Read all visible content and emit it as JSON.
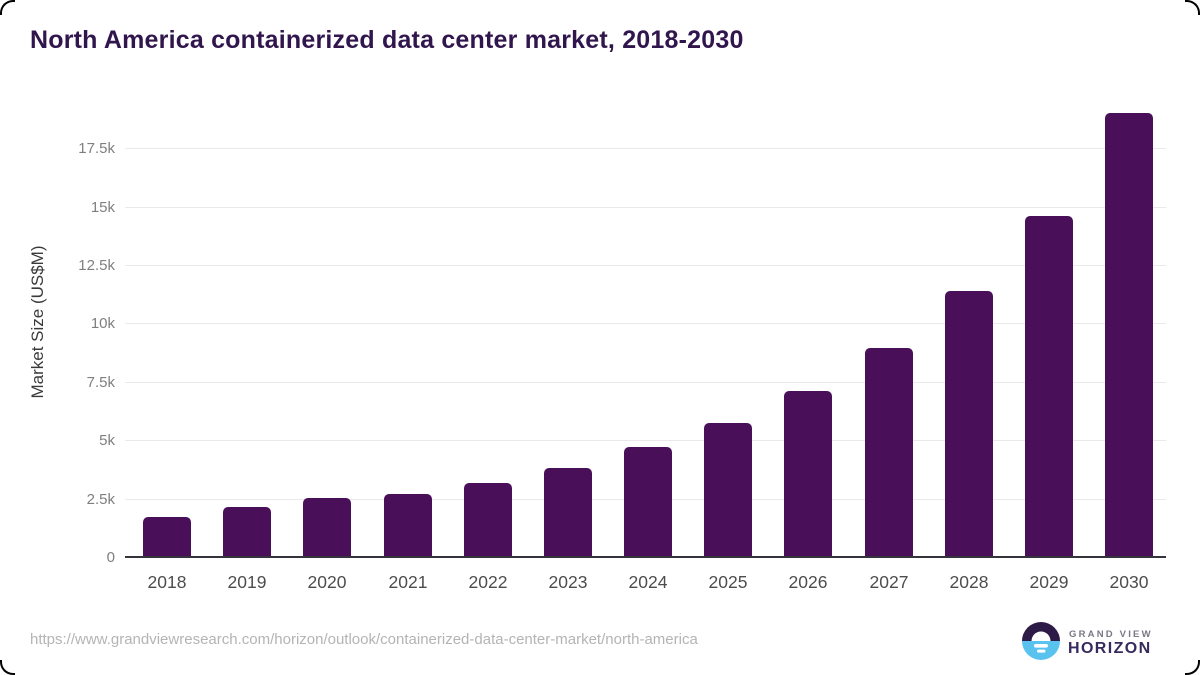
{
  "title": "North America containerized data center market, 2018-2030",
  "chart_data": {
    "type": "bar",
    "title": "North America containerized data center market, 2018-2030",
    "categories": [
      "2018",
      "2019",
      "2020",
      "2021",
      "2022",
      "2023",
      "2024",
      "2025",
      "2026",
      "2027",
      "2028",
      "2029",
      "2030"
    ],
    "values": [
      1750,
      2200,
      2570,
      2760,
      3230,
      3860,
      4750,
      5770,
      7160,
      9000,
      11450,
      14650,
      19050
    ],
    "xlabel": "",
    "ylabel": "Market Size (US$M)",
    "unit": "US$M",
    "ylim": [
      0,
      19500
    ],
    "yticks": [
      {
        "value": 0,
        "label": "0"
      },
      {
        "value": 2500,
        "label": "2.5k"
      },
      {
        "value": 5000,
        "label": "5k"
      },
      {
        "value": 7500,
        "label": "7.5k"
      },
      {
        "value": 10000,
        "label": "10k"
      },
      {
        "value": 12500,
        "label": "12.5k"
      },
      {
        "value": 15000,
        "label": "15k"
      },
      {
        "value": 17500,
        "label": "17.5k"
      }
    ],
    "grid": true,
    "legend": false,
    "bar_color": "#491059"
  },
  "footer": {
    "source_url": "https://www.grandviewresearch.com/horizon/outlook/containerized-data-center-market/north-america",
    "logo": {
      "line1": "GRAND VIEW",
      "line2": "HORIZON"
    }
  },
  "colors": {
    "title": "#31164d",
    "bar": "#491059",
    "gridline": "#e9e9e9",
    "axis_line": "#37333d",
    "y_tick_label": "#7f7f7f",
    "x_tick_label": "#4d4d4d",
    "url_text": "#b4b4b4",
    "logo_purple": "#2e1a47",
    "logo_blue": "#5ac2ee",
    "logo_text_primary": "#372a5c",
    "logo_text_secondary": "#7b7685"
  }
}
